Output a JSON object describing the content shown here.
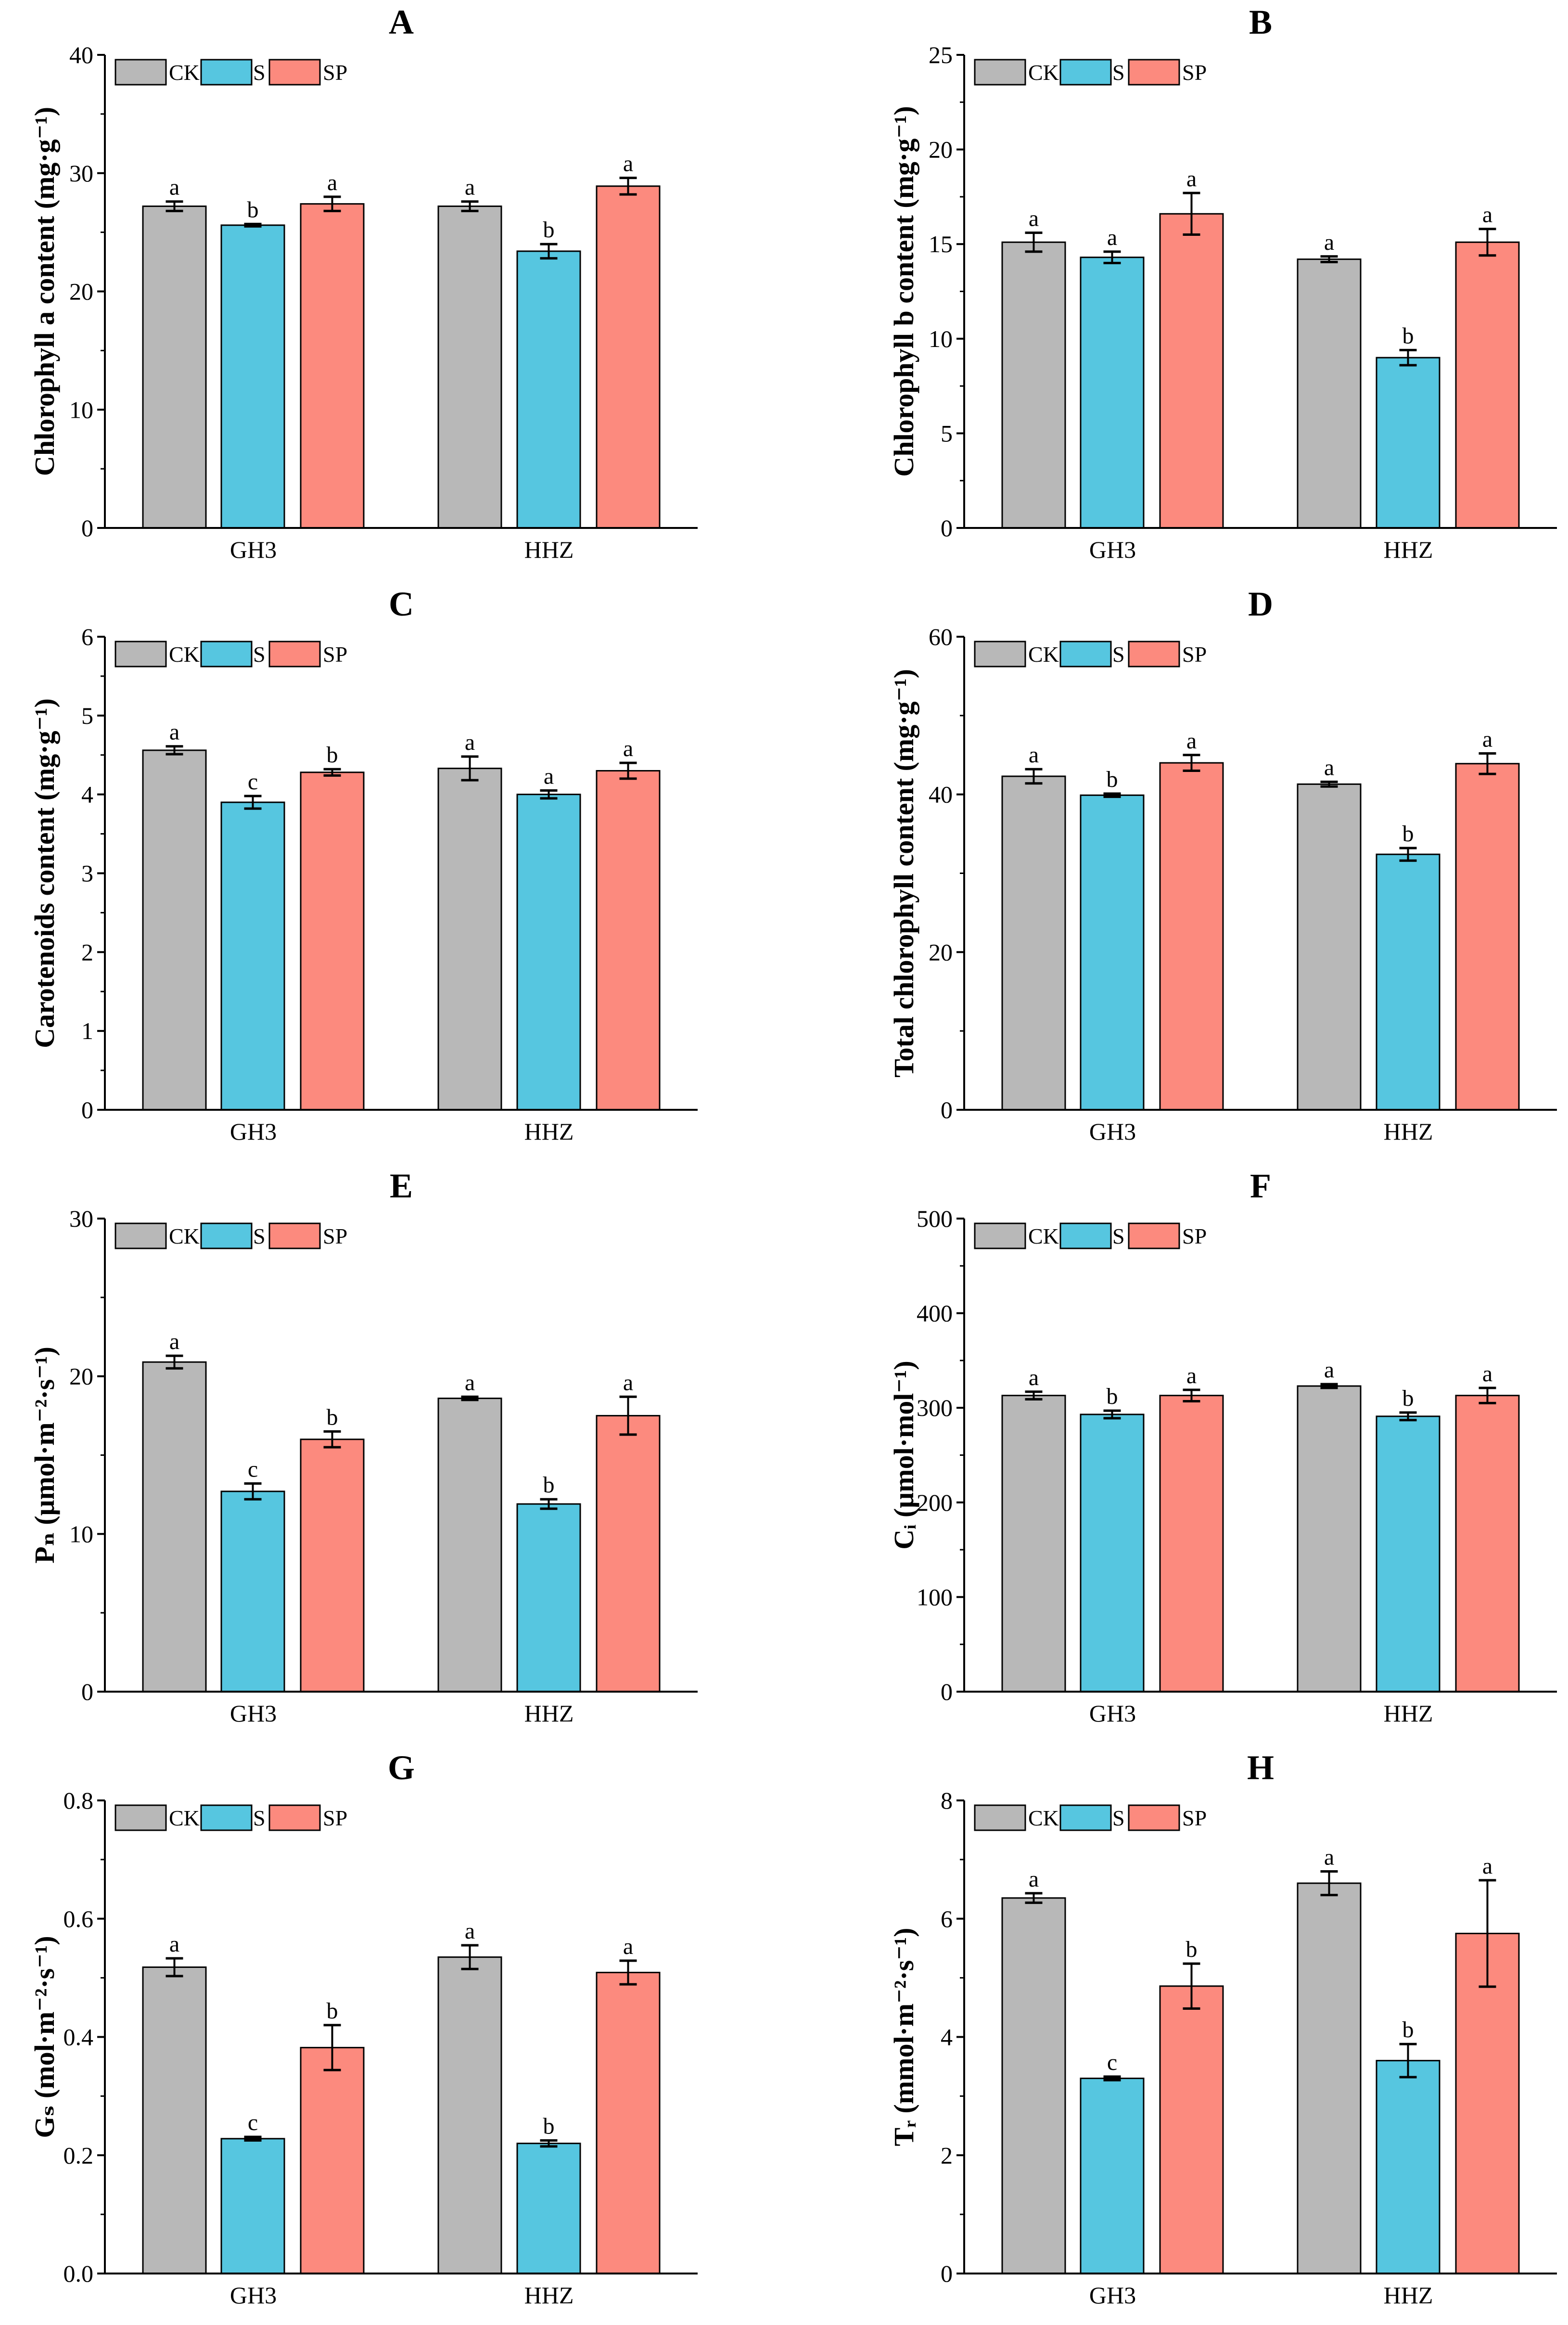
{
  "legend": [
    "CK",
    "S",
    "SP"
  ],
  "colors": {
    "CK": "#b8b8b8",
    "S": "#56c6e0",
    "SP": "#fc8a7e"
  },
  "chart_data": [
    {
      "type": "bar",
      "title": "A",
      "ylabel": "Chlorophyll a content (mg·g⁻¹)",
      "categories": [
        "GH3",
        "HHZ"
      ],
      "ylim": [
        0,
        40
      ],
      "yticks": [
        "0",
        "10",
        "20",
        "30",
        "40"
      ],
      "tick_step": 10,
      "series": [
        {
          "name": "CK",
          "values": [
            27.2,
            27.2
          ],
          "errors": [
            0.4,
            0.4
          ],
          "letters": [
            "a",
            "a"
          ]
        },
        {
          "name": "S",
          "values": [
            25.6,
            23.4
          ],
          "errors": [
            0.1,
            0.6
          ],
          "letters": [
            "b",
            "b"
          ]
        },
        {
          "name": "SP",
          "values": [
            27.4,
            28.9
          ],
          "errors": [
            0.6,
            0.7
          ],
          "letters": [
            "a",
            "a"
          ]
        }
      ]
    },
    {
      "type": "bar",
      "title": "B",
      "ylabel": "Chlorophyll b content (mg·g⁻¹)",
      "categories": [
        "GH3",
        "HHZ"
      ],
      "ylim": [
        0,
        25
      ],
      "yticks": [
        "0",
        "5",
        "10",
        "15",
        "20",
        "25"
      ],
      "tick_step": 5,
      "series": [
        {
          "name": "CK",
          "values": [
            15.1,
            14.2
          ],
          "errors": [
            0.5,
            0.15
          ],
          "letters": [
            "a",
            "a"
          ]
        },
        {
          "name": "S",
          "values": [
            14.3,
            9.0
          ],
          "errors": [
            0.3,
            0.4
          ],
          "letters": [
            "a",
            "b"
          ]
        },
        {
          "name": "SP",
          "values": [
            16.6,
            15.1
          ],
          "errors": [
            1.1,
            0.7
          ],
          "letters": [
            "a",
            "a"
          ]
        }
      ]
    },
    {
      "type": "bar",
      "title": "C",
      "ylabel": "Carotenoids content (mg·g⁻¹)",
      "categories": [
        "GH3",
        "HHZ"
      ],
      "ylim": [
        0,
        6
      ],
      "yticks": [
        "0",
        "1",
        "2",
        "3",
        "4",
        "5",
        "6"
      ],
      "tick_step": 1,
      "series": [
        {
          "name": "CK",
          "values": [
            4.56,
            4.33
          ],
          "errors": [
            0.05,
            0.15
          ],
          "letters": [
            "a",
            "a"
          ]
        },
        {
          "name": "S",
          "values": [
            3.9,
            4.0
          ],
          "errors": [
            0.08,
            0.05
          ],
          "letters": [
            "c",
            "a"
          ]
        },
        {
          "name": "SP",
          "values": [
            4.28,
            4.3
          ],
          "errors": [
            0.04,
            0.1
          ],
          "letters": [
            "b",
            "a"
          ]
        }
      ]
    },
    {
      "type": "bar",
      "title": "D",
      "ylabel": "Total chlorophyll content (mg·g⁻¹)",
      "categories": [
        "GH3",
        "HHZ"
      ],
      "ylim": [
        0,
        60
      ],
      "yticks": [
        "0",
        "20",
        "40",
        "60"
      ],
      "tick_step": 20,
      "series": [
        {
          "name": "CK",
          "values": [
            42.3,
            41.3
          ],
          "errors": [
            0.9,
            0.3
          ],
          "letters": [
            "a",
            "a"
          ]
        },
        {
          "name": "S",
          "values": [
            39.9,
            32.4
          ],
          "errors": [
            0.2,
            0.8
          ],
          "letters": [
            "b",
            "b"
          ]
        },
        {
          "name": "SP",
          "values": [
            44.0,
            43.9
          ],
          "errors": [
            1.0,
            1.3
          ],
          "letters": [
            "a",
            "a"
          ]
        }
      ]
    },
    {
      "type": "bar",
      "title": "E",
      "ylabel": "Pₙ (μmol·m⁻²·s⁻¹)",
      "categories": [
        "GH3",
        "HHZ"
      ],
      "ylim": [
        0,
        30
      ],
      "yticks": [
        "0",
        "10",
        "20",
        "30"
      ],
      "tick_step": 10,
      "series": [
        {
          "name": "CK",
          "values": [
            20.9,
            18.6
          ],
          "errors": [
            0.4,
            0.1
          ],
          "letters": [
            "a",
            "a"
          ]
        },
        {
          "name": "S",
          "values": [
            12.7,
            11.9
          ],
          "errors": [
            0.5,
            0.3
          ],
          "letters": [
            "c",
            "b"
          ]
        },
        {
          "name": "SP",
          "values": [
            16.0,
            17.5
          ],
          "errors": [
            0.5,
            1.2
          ],
          "letters": [
            "b",
            "a"
          ]
        }
      ]
    },
    {
      "type": "bar",
      "title": "F",
      "ylabel": "Cᵢ (μmol·mol⁻¹)",
      "categories": [
        "GH3",
        "HHZ"
      ],
      "ylim": [
        0,
        500
      ],
      "yticks": [
        "0",
        "100",
        "200",
        "300",
        "400",
        "500"
      ],
      "tick_step": 100,
      "series": [
        {
          "name": "CK",
          "values": [
            313,
            323
          ],
          "errors": [
            4,
            2
          ],
          "letters": [
            "a",
            "a"
          ]
        },
        {
          "name": "S",
          "values": [
            293,
            291
          ],
          "errors": [
            4,
            4
          ],
          "letters": [
            "b",
            "b"
          ]
        },
        {
          "name": "SP",
          "values": [
            313,
            313
          ],
          "errors": [
            6,
            8
          ],
          "letters": [
            "a",
            "a"
          ]
        }
      ]
    },
    {
      "type": "bar",
      "title": "G",
      "ylabel": "Gₛ (mol·m⁻²·s⁻¹)",
      "categories": [
        "GH3",
        "HHZ"
      ],
      "ylim": [
        0,
        0.8
      ],
      "yticks": [
        "0.0",
        "0.2",
        "0.4",
        "0.6",
        "0.8"
      ],
      "tick_step": 0.2,
      "series": [
        {
          "name": "CK",
          "values": [
            0.518,
            0.535
          ],
          "errors": [
            0.015,
            0.02
          ],
          "letters": [
            "a",
            "a"
          ]
        },
        {
          "name": "S",
          "values": [
            0.228,
            0.22
          ],
          "errors": [
            0.003,
            0.005
          ],
          "letters": [
            "c",
            "b"
          ]
        },
        {
          "name": "SP",
          "values": [
            0.382,
            0.509
          ],
          "errors": [
            0.038,
            0.02
          ],
          "letters": [
            "b",
            "a"
          ]
        }
      ]
    },
    {
      "type": "bar",
      "title": "H",
      "ylabel": "Tᵣ (mmol·m⁻²·s⁻¹)",
      "categories": [
        "GH3",
        "HHZ"
      ],
      "ylim": [
        0,
        8
      ],
      "yticks": [
        "0",
        "2",
        "4",
        "6",
        "8"
      ],
      "tick_step": 2,
      "series": [
        {
          "name": "CK",
          "values": [
            6.35,
            6.6
          ],
          "errors": [
            0.08,
            0.2
          ],
          "letters": [
            "a",
            "a"
          ]
        },
        {
          "name": "S",
          "values": [
            3.3,
            3.6
          ],
          "errors": [
            0.03,
            0.28
          ],
          "letters": [
            "c",
            "b"
          ]
        },
        {
          "name": "SP",
          "values": [
            4.86,
            5.75
          ],
          "errors": [
            0.38,
            0.9
          ],
          "letters": [
            "b",
            "a"
          ]
        }
      ]
    }
  ]
}
